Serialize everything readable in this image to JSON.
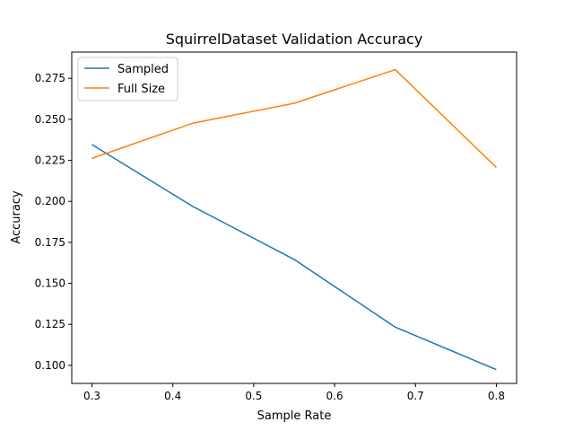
{
  "chart_data": {
    "type": "line",
    "title": "SquirrelDataset Validation Accuracy",
    "xlabel": "Sample Rate",
    "ylabel": "Accuracy",
    "x": [
      0.3,
      0.425,
      0.55,
      0.675,
      0.8
    ],
    "xlim": [
      0.275,
      0.825
    ],
    "ylim": [
      0.089,
      0.291
    ],
    "xticks": [
      0.3,
      0.4,
      0.5,
      0.6,
      0.7,
      0.8
    ],
    "xtick_labels": [
      "0.3",
      "0.4",
      "0.5",
      "0.6",
      "0.7",
      "0.8"
    ],
    "yticks": [
      0.1,
      0.125,
      0.15,
      0.175,
      0.2,
      0.225,
      0.25,
      0.275
    ],
    "ytick_labels": [
      "0.100",
      "0.125",
      "0.150",
      "0.175",
      "0.200",
      "0.225",
      "0.250",
      "0.275"
    ],
    "grid": false,
    "legend_position": "top-left",
    "series": [
      {
        "name": "Sampled",
        "color": "#1f77b4",
        "values": [
          0.2346,
          0.1968,
          0.1646,
          0.1233,
          0.0974
        ]
      },
      {
        "name": "Full Size",
        "color": "#ff7f0e",
        "values": [
          0.2262,
          0.2477,
          0.2598,
          0.2803,
          0.2206
        ]
      }
    ]
  }
}
